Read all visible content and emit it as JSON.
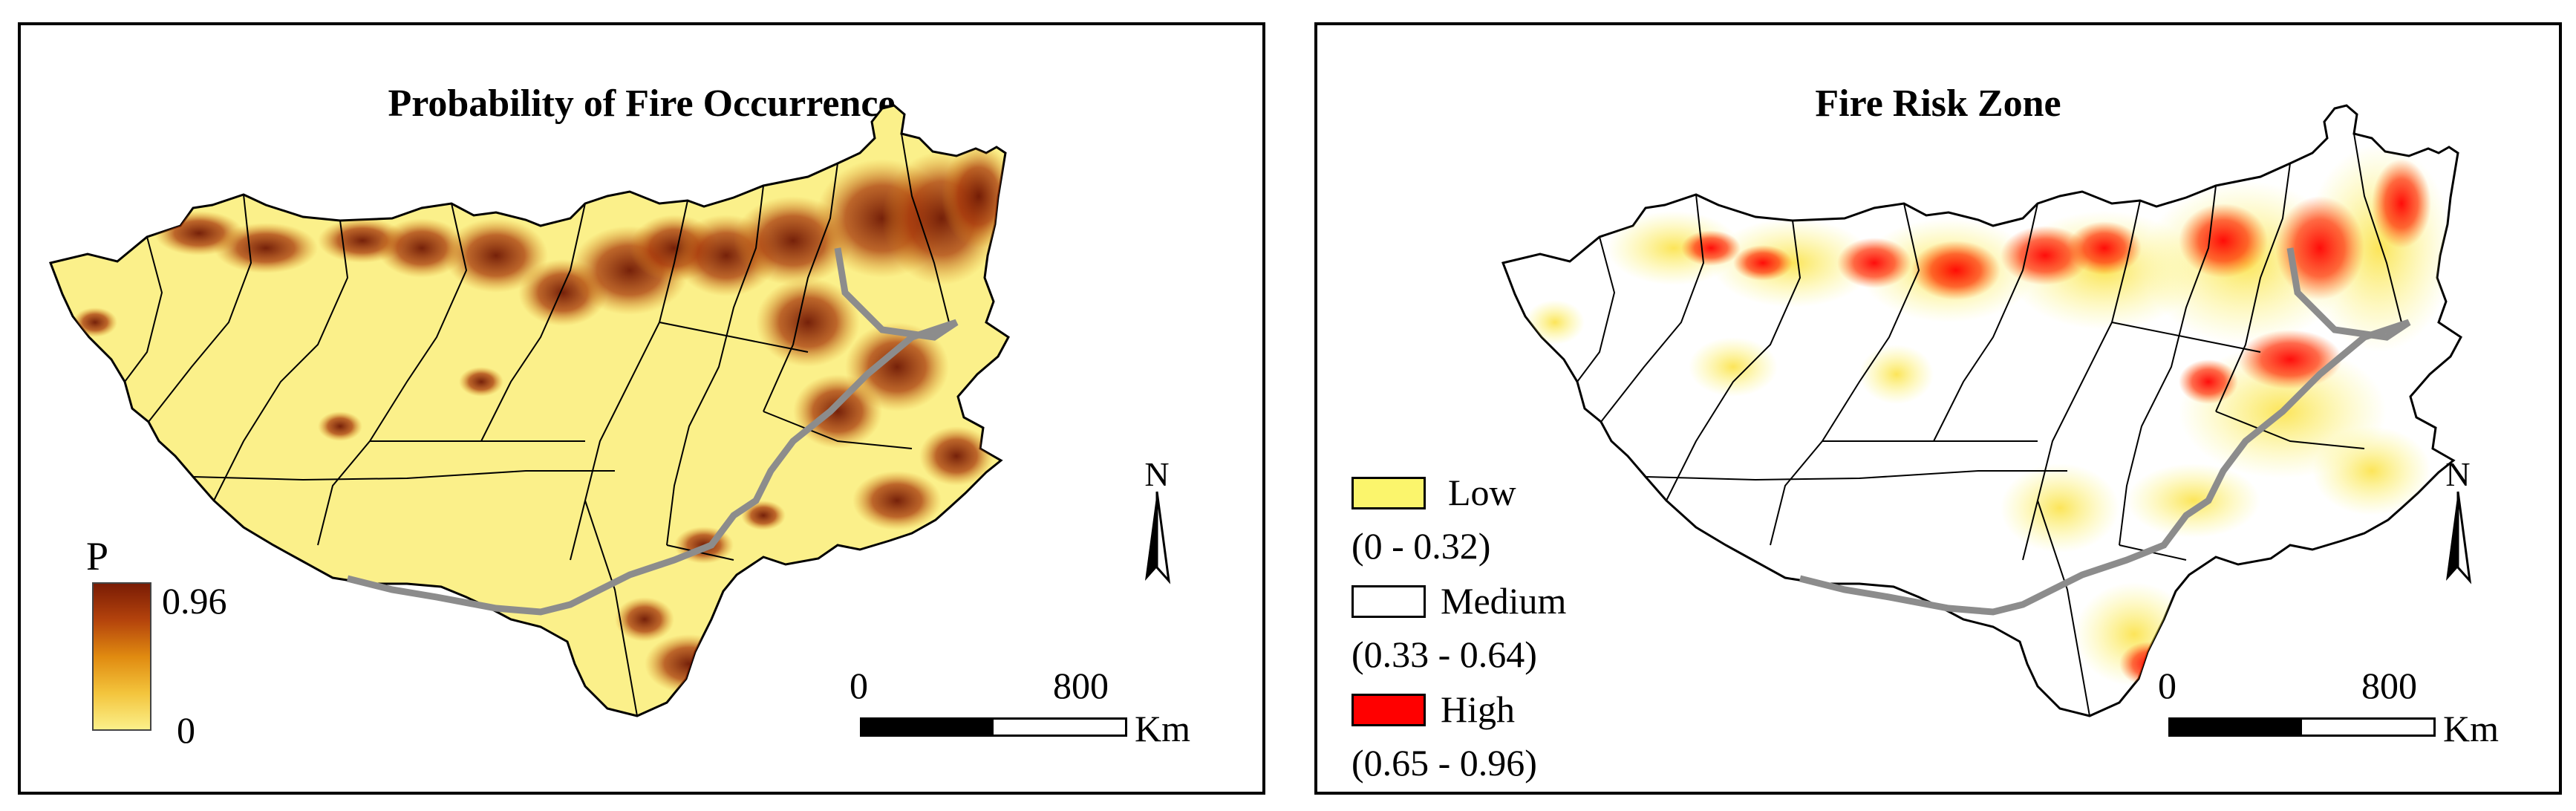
{
  "left_panel": {
    "title": "Probability of Fire Occurrence",
    "legend_title": "P",
    "legend_max": "0.96",
    "legend_min": "0",
    "scale_zero": "0",
    "scale_end": "800",
    "scale_unit": "Km",
    "north_label": "N"
  },
  "right_panel": {
    "title": "Fire Risk Zone",
    "legend": [
      {
        "label": "Low",
        "range": "(0 - 0.32)",
        "color": "#fbf56c"
      },
      {
        "label": "Medium",
        "range": "(0.33 - 0.64)",
        "color": "#ffffff"
      },
      {
        "label": "High",
        "range": "(0.65 - 0.96)",
        "color": "#ff0000"
      }
    ],
    "scale_zero": "0",
    "scale_end": "800",
    "scale_unit": "Km",
    "north_label": "N"
  },
  "colors": {
    "base_yellow": "#fbf08a",
    "dark_red": "#7a1c05",
    "high_red": "#ff0000",
    "boundary_gray": "#8c8c8c"
  }
}
